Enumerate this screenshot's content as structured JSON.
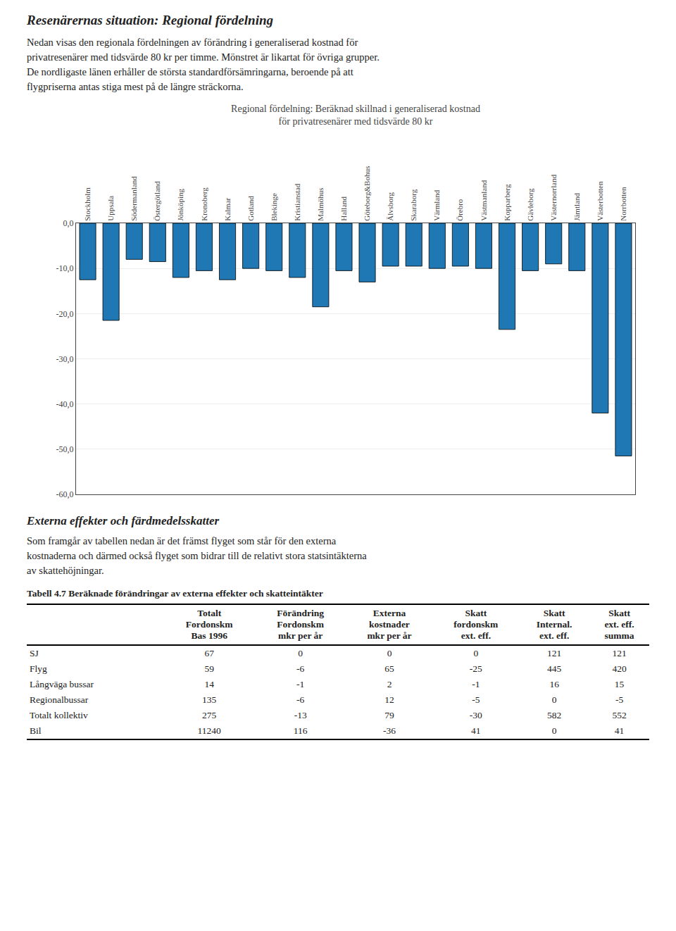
{
  "title": "Resenärernas situation: Regional fördelning",
  "intro_text_lines": [
    "Nedan visas den regionala fördelningen av förändring i generaliserad kostnad för",
    "privatresenärer med tidsvärde 80 kr per timme. Mönstret är likartat för övriga grupper.",
    "De nordligaste länen erhåller de största standardförsämringarna, beroende på att",
    "flygpriserna antas stiga mest på de längre sträckorna."
  ],
  "chart_data": {
    "type": "bar",
    "title": "Regional fördelning: Beräknad skillnad i generaliserad kostnad\nför privatresenärer med tidsvärde 80 kr",
    "categories": [
      "Stockholm",
      "Uppsala",
      "Södermanland",
      "Östergötland",
      "Jönköping",
      "Kronoberg",
      "Kalmar",
      "Gotland",
      "Blekinge",
      "Kristianstad",
      "Malmöhus",
      "Halland",
      "Göteborg&Bohus",
      "Älvsborg",
      "Skaraborg",
      "Värmland",
      "Örebro",
      "Västmanland",
      "Kopparberg",
      "Gävleborg",
      "Västernorrland",
      "Jämtland",
      "Västerbotten",
      "Norrbotten"
    ],
    "values": [
      -12.5,
      -21.5,
      -8.0,
      -8.5,
      -12.0,
      -10.5,
      -12.5,
      -10.0,
      -10.5,
      -12.0,
      -18.5,
      -10.5,
      -13.0,
      -9.5,
      -9.5,
      -10.0,
      -9.5,
      -10.0,
      -23.5,
      -10.5,
      -9.0,
      -10.5,
      -42.0,
      -51.5
    ],
    "ylim": [
      -60,
      0
    ],
    "yticks": [
      {
        "value": 0,
        "label": "0,0"
      },
      {
        "value": -10,
        "label": "-10,0"
      },
      {
        "value": -20,
        "label": "-20,0"
      },
      {
        "value": -30,
        "label": "-30,0"
      },
      {
        "value": -40,
        "label": "-40,0"
      },
      {
        "value": -50,
        "label": "-50,0"
      },
      {
        "value": -60,
        "label": "-60,0"
      }
    ],
    "grid": true
  },
  "section2_title": "Externa effekter och färdmedelsskatter",
  "section2_text_lines": [
    "Som framgår av tabellen nedan är det främst flyget som står för den externa",
    "kostnaderna  och därmed också flyget som bidrar till de relativt stora statsintäkterna",
    "av skattehöjningar."
  ],
  "table": {
    "title": "Tabell 4.7 Beräknade förändringar av externa effekter och skatteintäkter",
    "headers": [
      "Totalt\nFordonskm\nBas 1996",
      "Förändring\nFordonskm\nmkr per år",
      "Externa\nkostnader\nmkr per år",
      "Skatt\nfordonskm\next. eff.",
      "Skatt\nInternal.\next. eff.",
      "Skatt\next. eff.\nsumma"
    ],
    "rows": [
      [
        "SJ",
        "67",
        "0",
        "0",
        "0",
        "121",
        "121"
      ],
      [
        "Flyg",
        "59",
        "-6",
        "65",
        "-25",
        "445",
        "420"
      ],
      [
        "Långväga bussar",
        "14",
        "-1",
        "2",
        "-1",
        "16",
        "15"
      ],
      [
        "Regionalbussar",
        "135",
        "-6",
        "12",
        "-5",
        "0",
        "-5"
      ],
      [
        "Totalt kollektiv",
        "275",
        "-13",
        "79",
        "-30",
        "582",
        "552"
      ],
      [
        "Bil",
        "11240",
        "116",
        "-36",
        "41",
        "0",
        "41"
      ]
    ]
  }
}
